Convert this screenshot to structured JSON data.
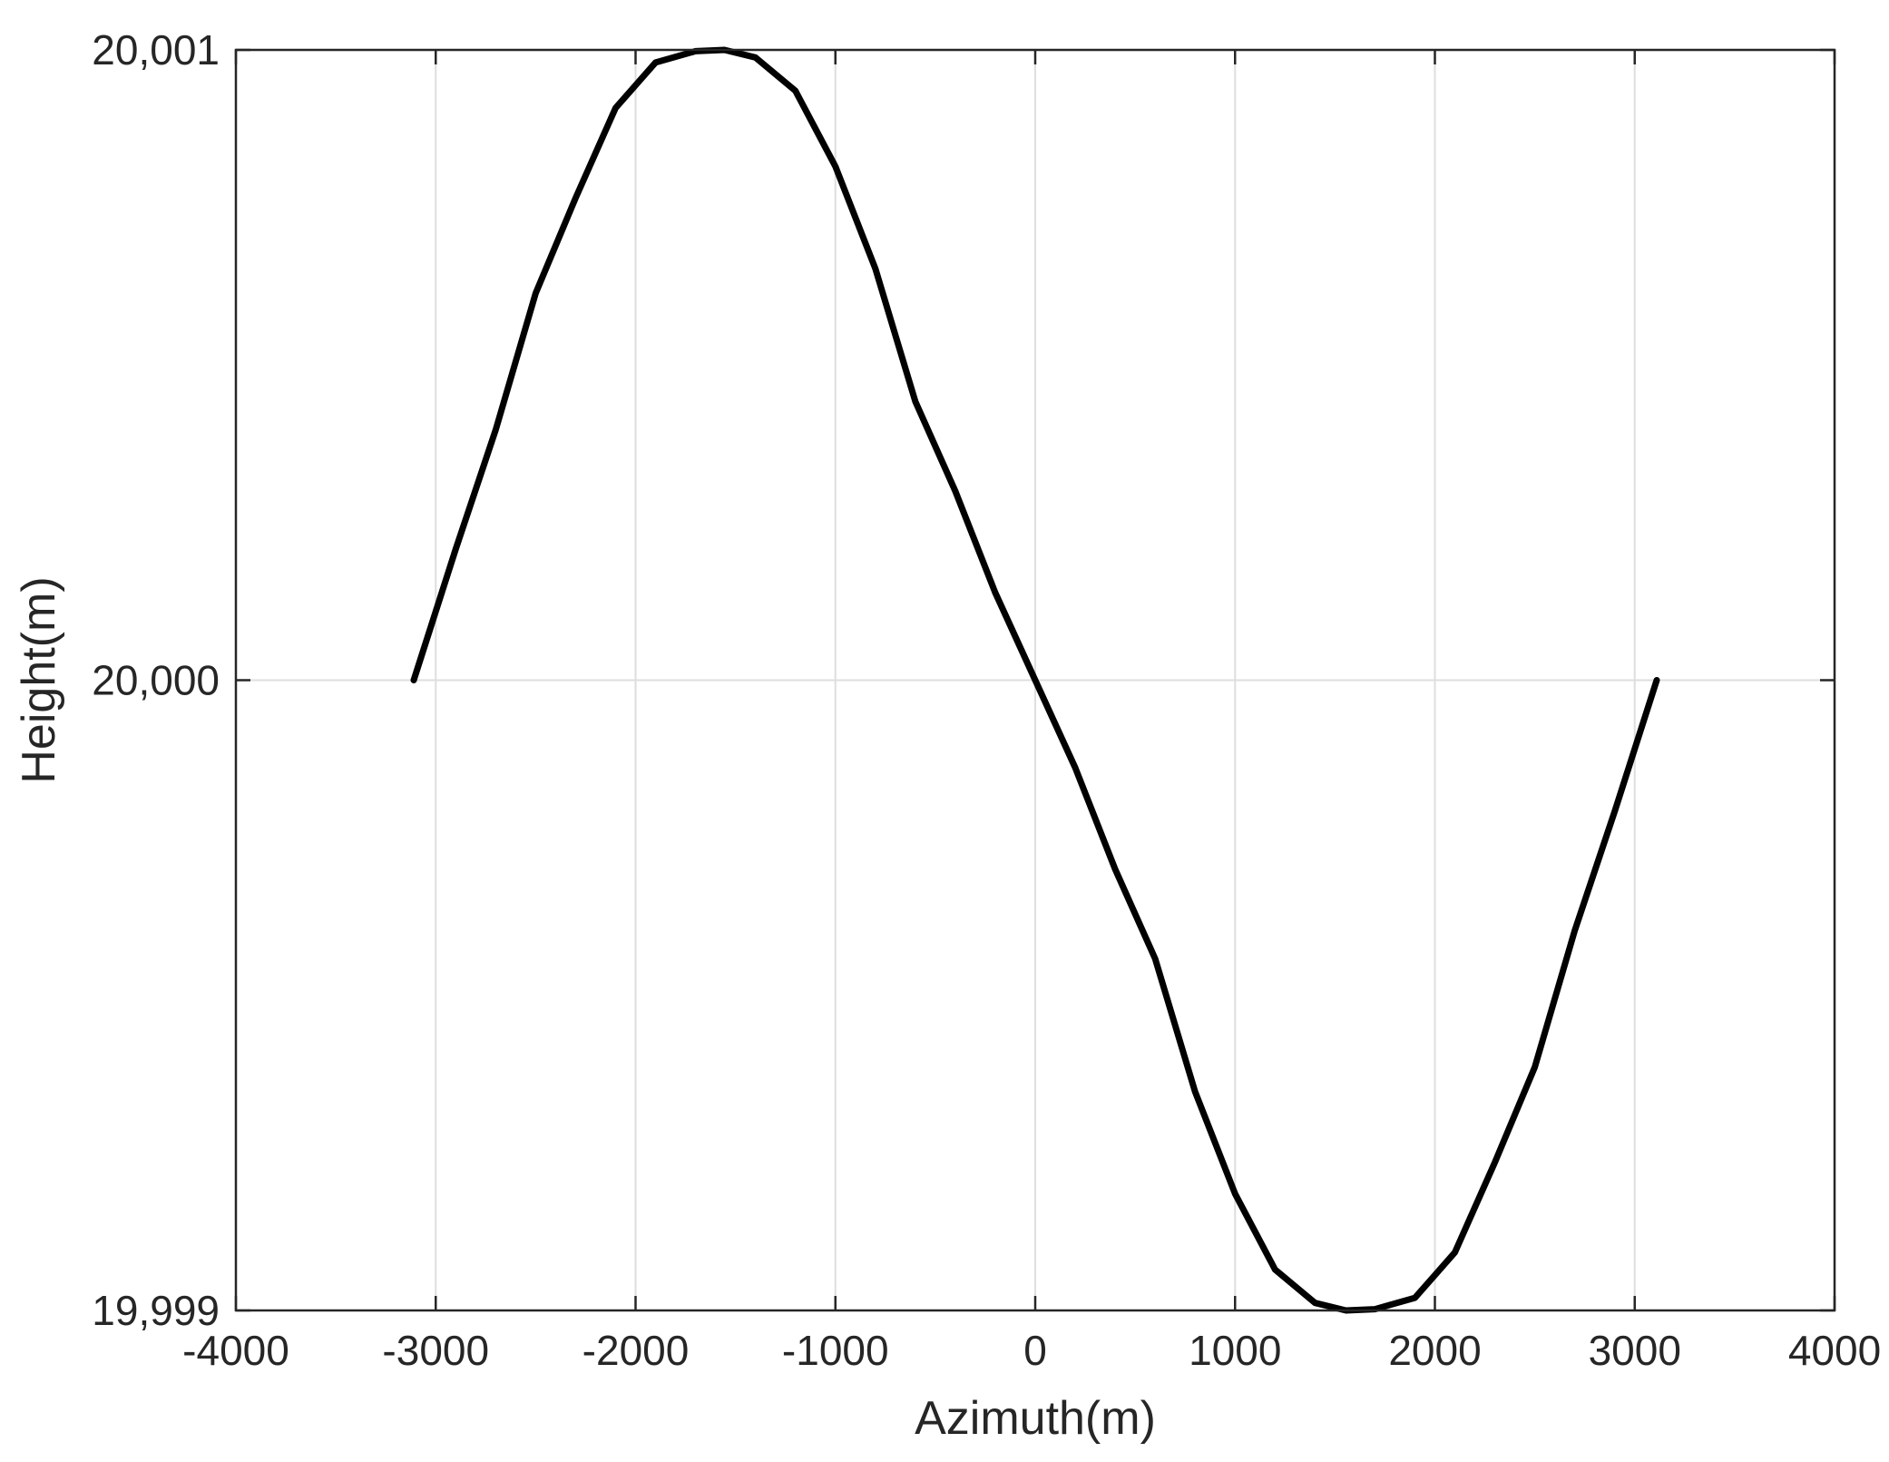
{
  "chart_data": {
    "type": "line",
    "title": "",
    "xlabel": "Azimuth(m)",
    "ylabel": "Height(m)",
    "xlim": [
      -4000,
      4000
    ],
    "ylim": [
      19999,
      20001
    ],
    "x_ticks": [
      -4000,
      -3000,
      -2000,
      -1000,
      0,
      1000,
      2000,
      3000,
      4000
    ],
    "x_tick_labels": [
      "-4000",
      "-3000",
      "-2000",
      "-1000",
      "0",
      "1000",
      "2000",
      "3000",
      "4000"
    ],
    "y_ticks": [
      19999,
      20000,
      20001
    ],
    "y_tick_labels": [
      "19,999",
      "20,000",
      "20,001"
    ],
    "grid": true,
    "series": [
      {
        "color": "#000000",
        "x": [
          -3110,
          -2900,
          -2700,
          -2500,
          -2300,
          -2100,
          -1900,
          -1700,
          -1555,
          -1400,
          -1200,
          -1000,
          -800,
          -600,
          -400,
          -200,
          0,
          200,
          400,
          600,
          800,
          1000,
          1200,
          1400,
          1555,
          1700,
          1900,
          2100,
          2300,
          2500,
          2700,
          2900,
          3110
        ],
        "y": [
          20000.0,
          20000.208,
          20000.397,
          20000.614,
          20000.765,
          20000.908,
          20000.98,
          20000.998,
          20001.0,
          20000.988,
          20000.935,
          20000.815,
          20000.653,
          20000.442,
          20000.3,
          20000.139,
          20000.0,
          19999.861,
          19999.7,
          19999.558,
          19999.347,
          19999.185,
          19999.065,
          19999.012,
          19999.0,
          19999.002,
          19999.02,
          19999.092,
          19999.235,
          19999.386,
          19999.603,
          19999.792,
          20000.0
        ]
      }
    ]
  }
}
